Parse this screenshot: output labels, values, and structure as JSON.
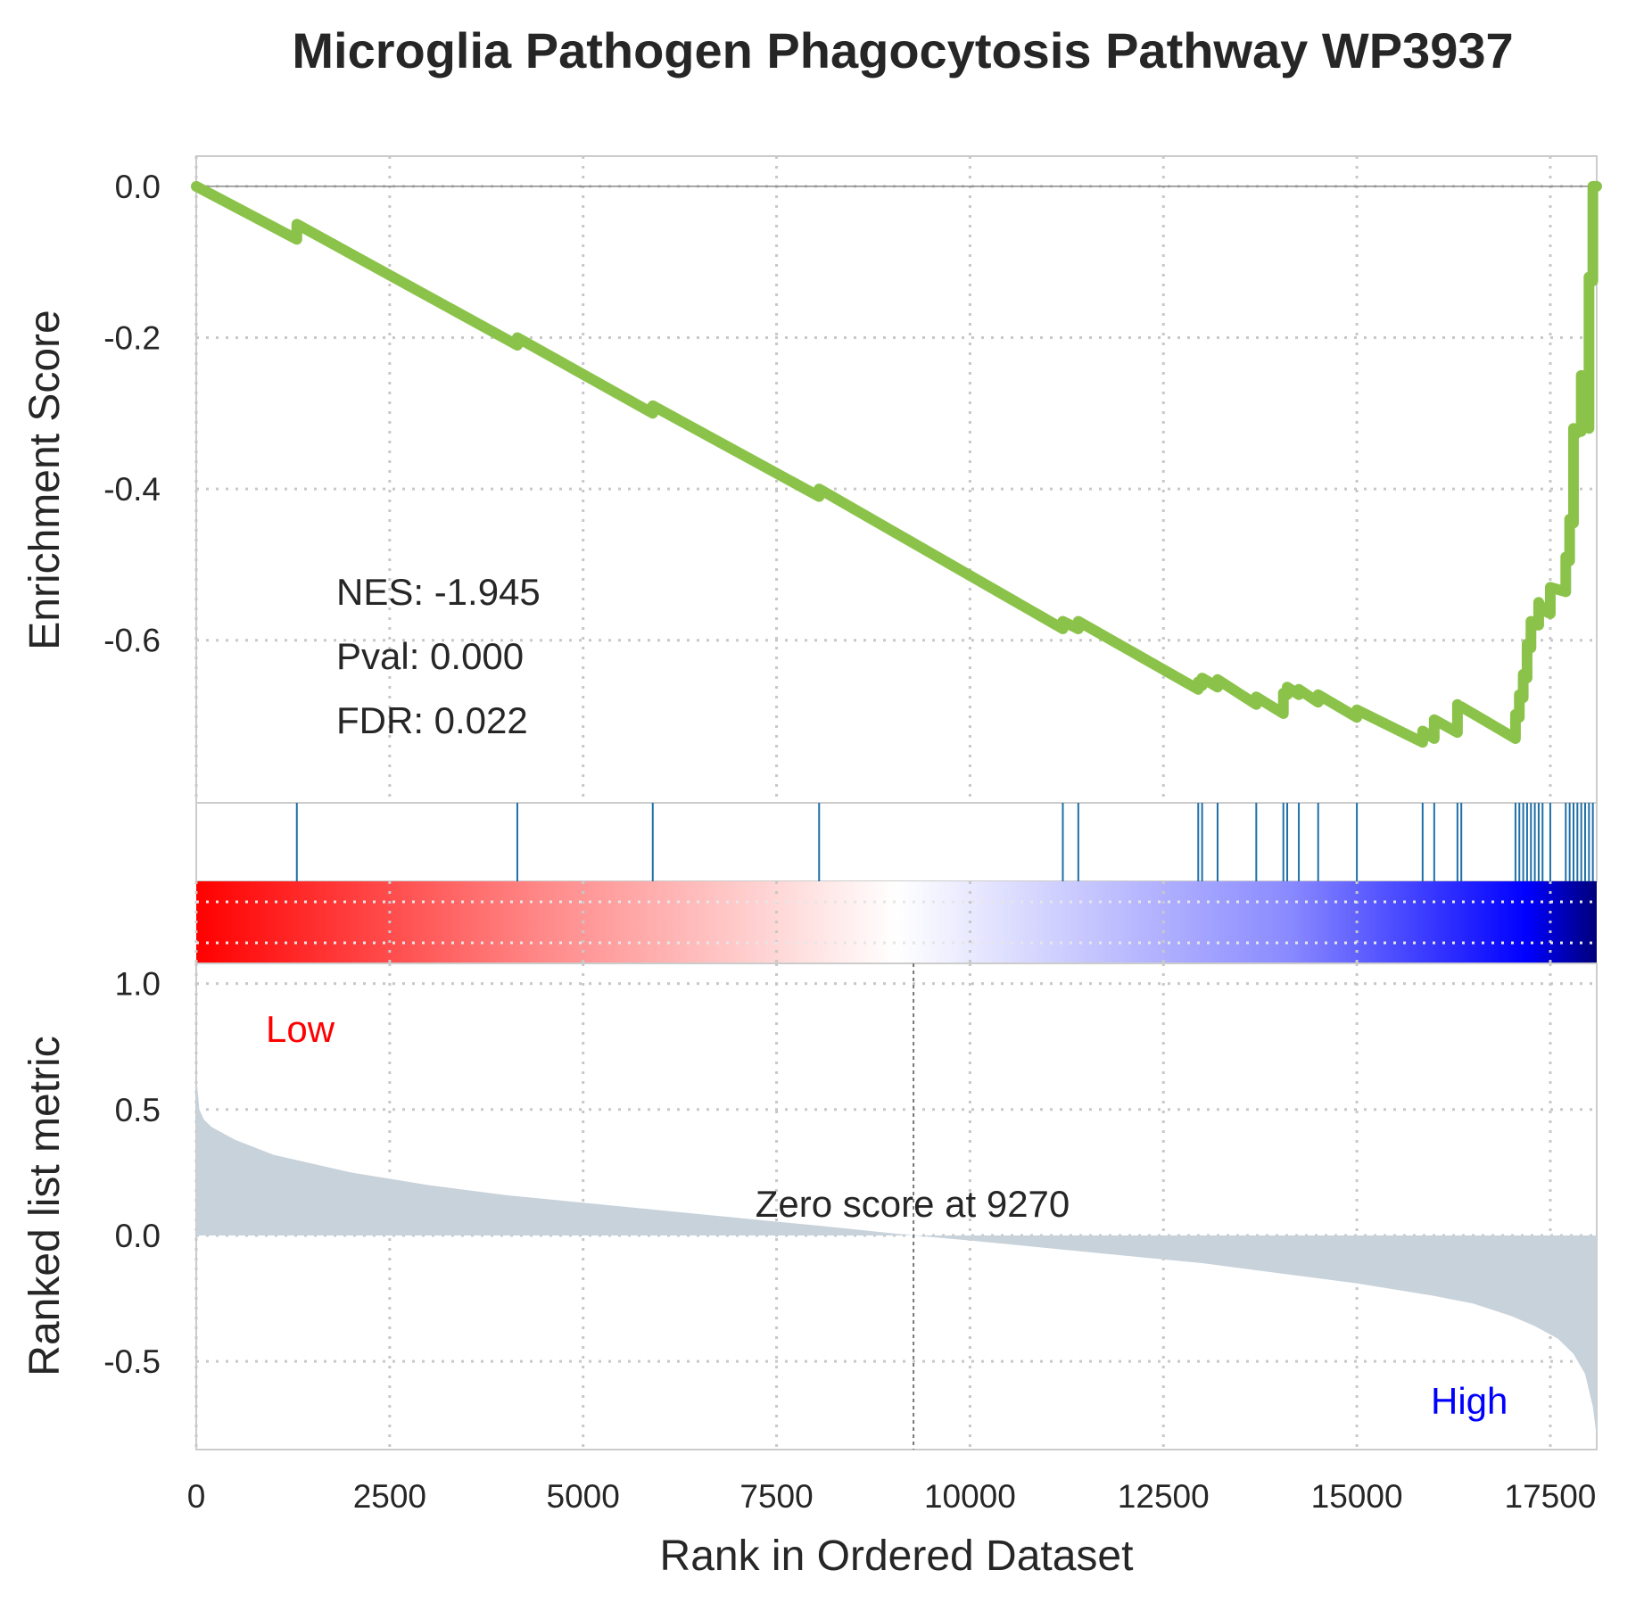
{
  "chart_data": {
    "type": "line",
    "title": "Microglia Pathogen Phagocytosis Pathway WP3937",
    "xlabel": "Rank in Ordered Dataset",
    "colors": {
      "running_es": "#8bc34a",
      "hits": "#1f6fa8",
      "metric_fill": "#c8d2db",
      "low_label": "#ff0000",
      "high_label": "#0000ff",
      "grid": "#c8c8c8"
    },
    "grid": true,
    "x_range": [
      0,
      18100
    ],
    "x_ticks": [
      "0",
      "2500",
      "5000",
      "7500",
      "10000",
      "12500",
      "15000",
      "17500"
    ],
    "enrichment_panel": {
      "ylabel": "Enrichment Score",
      "ylim": [
        -0.815,
        0.04
      ],
      "y_ticks": [
        "0.0",
        "-0.2",
        "-0.4",
        "-0.6"
      ],
      "stats": {
        "nes": "NES: -1.945",
        "pval": "Pval: 0.000",
        "fdr": "FDR: 0.022"
      },
      "running_es": {
        "x": [
          0,
          1300,
          1300,
          4150,
          4150,
          5900,
          5900,
          8050,
          8050,
          11200,
          11200,
          11400,
          11400,
          12950,
          12950,
          13000,
          13000,
          13200,
          13200,
          13700,
          13700,
          14050,
          14050,
          14100,
          14100,
          14250,
          14250,
          14500,
          14500,
          15000,
          15000,
          15850,
          15850,
          16000,
          16000,
          16300,
          16300,
          16350,
          16350,
          17050,
          17050,
          17100,
          17100,
          17150,
          17150,
          17200,
          17200,
          17250,
          17250,
          17300,
          17300,
          17350,
          17350,
          17400,
          17400,
          17500,
          17500,
          17700,
          17700,
          17750,
          17750,
          17800,
          17800,
          17850,
          17850,
          17900,
          17900,
          17950,
          17950,
          18000,
          18000,
          18050,
          18050,
          18100
        ],
        "y": [
          0.0,
          -0.07,
          -0.05,
          -0.21,
          -0.2,
          -0.3,
          -0.29,
          -0.41,
          -0.4,
          -0.585,
          -0.575,
          -0.585,
          -0.575,
          -0.665,
          -0.655,
          -0.66,
          -0.65,
          -0.662,
          -0.652,
          -0.685,
          -0.675,
          -0.697,
          -0.67,
          -0.672,
          -0.662,
          -0.672,
          -0.665,
          -0.682,
          -0.672,
          -0.702,
          -0.692,
          -0.735,
          -0.72,
          -0.73,
          -0.705,
          -0.722,
          -0.685,
          -0.69,
          -0.688,
          -0.73,
          -0.698,
          -0.702,
          -0.672,
          -0.676,
          -0.645,
          -0.65,
          -0.605,
          -0.61,
          -0.575,
          -0.58,
          -0.58,
          -0.58,
          -0.55,
          -0.56,
          -0.56,
          -0.565,
          -0.53,
          -0.536,
          -0.49,
          -0.495,
          -0.44,
          -0.445,
          -0.32,
          -0.326,
          -0.32,
          -0.324,
          -0.25,
          -0.255,
          -0.25,
          -0.32,
          -0.12,
          -0.125,
          0.0,
          0.0
        ]
      }
    },
    "hits": [
      1300,
      4150,
      5900,
      8050,
      11200,
      11400,
      12950,
      13000,
      13200,
      13700,
      14050,
      14100,
      14250,
      14500,
      15000,
      15850,
      16000,
      16300,
      16350,
      17050,
      17100,
      17150,
      17200,
      17250,
      17300,
      17350,
      17400,
      17500,
      17700,
      17750,
      17800,
      17850,
      17900,
      17950,
      18000,
      18050
    ],
    "metric_panel": {
      "ylabel": "Ranked list metric",
      "ylim": [
        -0.85,
        1.08
      ],
      "y_ticks": [
        "1.0",
        "0.5",
        "0.0",
        "-0.5"
      ],
      "zero_cross": 9270,
      "zero_label": "Zero score at 9270",
      "low_label": "Low",
      "high_label": "High",
      "metric": {
        "x": [
          0,
          10,
          40,
          100,
          200,
          500,
          1000,
          2000,
          3000,
          4000,
          5000,
          6000,
          7000,
          8000,
          9270,
          10000,
          11000,
          12000,
          13000,
          14000,
          15000,
          16000,
          16500,
          17000,
          17300,
          17600,
          17800,
          17950,
          18050,
          18100
        ],
        "y": [
          0.75,
          0.6,
          0.5,
          0.46,
          0.43,
          0.38,
          0.32,
          0.25,
          0.2,
          0.16,
          0.13,
          0.1,
          0.07,
          0.04,
          0.0,
          -0.02,
          -0.05,
          -0.08,
          -0.11,
          -0.15,
          -0.19,
          -0.24,
          -0.27,
          -0.32,
          -0.36,
          -0.41,
          -0.47,
          -0.55,
          -0.68,
          -0.8
        ]
      }
    }
  }
}
